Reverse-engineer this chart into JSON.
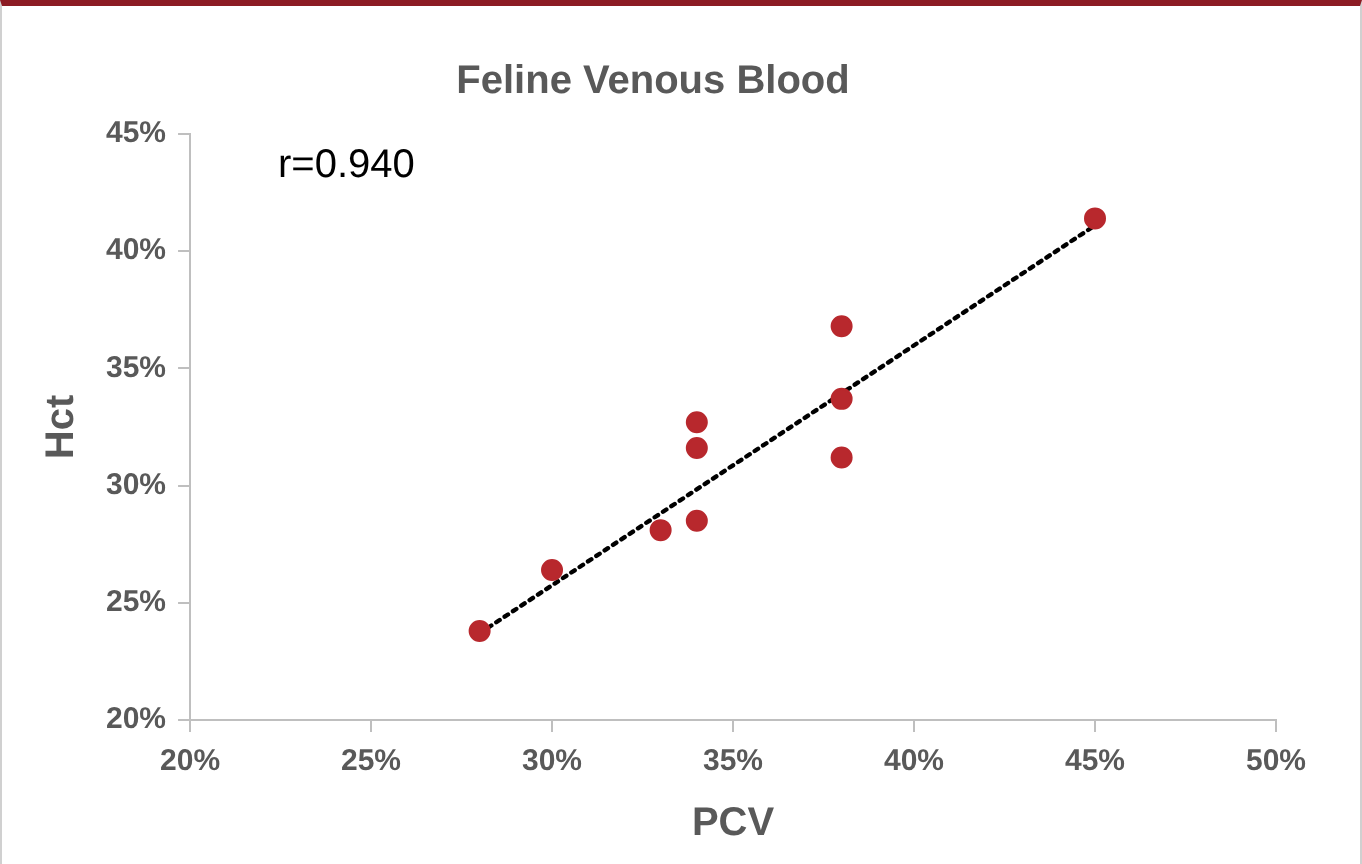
{
  "chart_data": {
    "type": "scatter",
    "title": "Feline Venous Blood",
    "xlabel": "PCV",
    "ylabel": "Hct",
    "annotations": [
      "r=0.940"
    ],
    "xlim": [
      20,
      50
    ],
    "xticks": [
      {
        "value": 20,
        "label": "20%"
      },
      {
        "value": 25,
        "label": "25%"
      },
      {
        "value": 30,
        "label": "30%"
      },
      {
        "value": 35,
        "label": "35%"
      },
      {
        "value": 40,
        "label": "40%"
      },
      {
        "value": 45,
        "label": "45%"
      },
      {
        "value": 50,
        "label": "50%"
      }
    ],
    "ylim": [
      20,
      45
    ],
    "yticks": [
      {
        "value": 20,
        "label": "20%"
      },
      {
        "value": 25,
        "label": "25%"
      },
      {
        "value": 30,
        "label": "30%"
      },
      {
        "value": 35,
        "label": "35%"
      },
      {
        "value": 40,
        "label": "40%"
      },
      {
        "value": 45,
        "label": "45%"
      }
    ],
    "grid": false,
    "legend": false,
    "marker": "circle",
    "series": [
      {
        "type": "scatter",
        "color": "#b8282d",
        "x": [
          28,
          30,
          33,
          34,
          34,
          34,
          38,
          38,
          38,
          45
        ],
        "values": [
          23.8,
          26.4,
          28.1,
          28.5,
          31.6,
          32.7,
          31.2,
          33.7,
          36.8,
          41.4
        ]
      },
      {
        "type": "line",
        "color": "#000000",
        "x": [
          28,
          45
        ],
        "values": [
          23.7,
          41.1
        ],
        "marker": "none",
        "line_style": "dotted"
      }
    ]
  }
}
